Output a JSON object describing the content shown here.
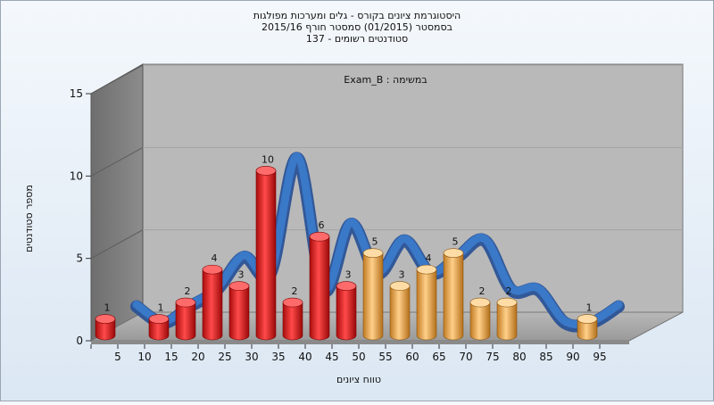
{
  "chart_data": {
    "type": "bar",
    "title_lines": [
      "היסטוגרמת ציונים בקורס - גלים ומערכות מפולגות",
      "בסמסטר  (01/2015)  סמסטר חורף 2015/16",
      "137 - סטודנטים רשומים"
    ],
    "inner_label": "Exam_B : במשימה",
    "xlabel": "טווח ציונים",
    "ylabel": "מספר סטודנטים",
    "x": [
      5,
      10,
      15,
      20,
      25,
      30,
      35,
      40,
      45,
      50,
      55,
      60,
      65,
      70,
      75,
      80,
      85,
      90,
      95
    ],
    "values": [
      1,
      0,
      1,
      2,
      4,
      3,
      10,
      2,
      6,
      3,
      5,
      3,
      4,
      5,
      2,
      2,
      0,
      0,
      1
    ],
    "value_labels": [
      "1",
      "",
      "1",
      "2",
      "4",
      "3",
      "10",
      "2",
      "6",
      "3",
      "5",
      "3",
      "4",
      "5",
      "2",
      "2",
      "",
      "",
      "1"
    ],
    "bar_colors": [
      "#e52a2a",
      "#e52a2a",
      "#e52a2a",
      "#e52a2a",
      "#e52a2a",
      "#e52a2a",
      "#e52a2a",
      "#e52a2a",
      "#e52a2a",
      "#e52a2a",
      "#e8a94a",
      "#e8a94a",
      "#e8a94a",
      "#e8a94a",
      "#e8a94a",
      "#e8a94a",
      "#e8a94a",
      "#e8a94a",
      "#e8a94a"
    ],
    "ylim": [
      0,
      15
    ],
    "yticks": [
      0,
      5,
      10,
      15
    ],
    "grid": true,
    "curve_color": "#3a78c8",
    "colors": {
      "low": "#e52a2a",
      "high": "#e8a94a",
      "curve": "#3a78c8"
    }
  }
}
